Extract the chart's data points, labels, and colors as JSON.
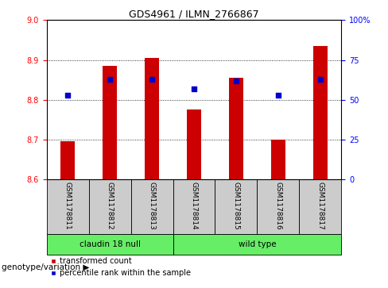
{
  "title": "GDS4961 / ILMN_2766867",
  "samples": [
    "GSM1178811",
    "GSM1178812",
    "GSM1178813",
    "GSM1178814",
    "GSM1178815",
    "GSM1178816",
    "GSM1178817"
  ],
  "bar_bottoms": [
    8.6,
    8.6,
    8.6,
    8.6,
    8.6,
    8.6,
    8.6
  ],
  "bar_tops": [
    8.695,
    8.885,
    8.905,
    8.775,
    8.855,
    8.7,
    8.935
  ],
  "percentile_pct": [
    53,
    63,
    63,
    57,
    62,
    53,
    63
  ],
  "bar_color": "#cc0000",
  "blue_color": "#0000cc",
  "ylim_left": [
    8.6,
    9.0
  ],
  "ylim_right": [
    0,
    100
  ],
  "yticks_left": [
    8.6,
    8.7,
    8.8,
    8.9,
    9.0
  ],
  "yticks_right": [
    0,
    25,
    50,
    75,
    100
  ],
  "ytick_labels_right": [
    "0",
    "25",
    "50",
    "75",
    "100%"
  ],
  "group1_samples": [
    0,
    1,
    2
  ],
  "group2_samples": [
    3,
    4,
    5,
    6
  ],
  "group1_label": "claudin 18 null",
  "group2_label": "wild type",
  "group_label_prefix": "genotype/variation ▶",
  "group1_color": "#66ee66",
  "group2_color": "#66ee66",
  "legend_red_label": "transformed count",
  "legend_blue_label": "percentile rank within the sample",
  "bar_width": 0.35,
  "grid_color": "black",
  "tick_label_area_color": "#cccccc",
  "group_area_color": "#66ee66"
}
